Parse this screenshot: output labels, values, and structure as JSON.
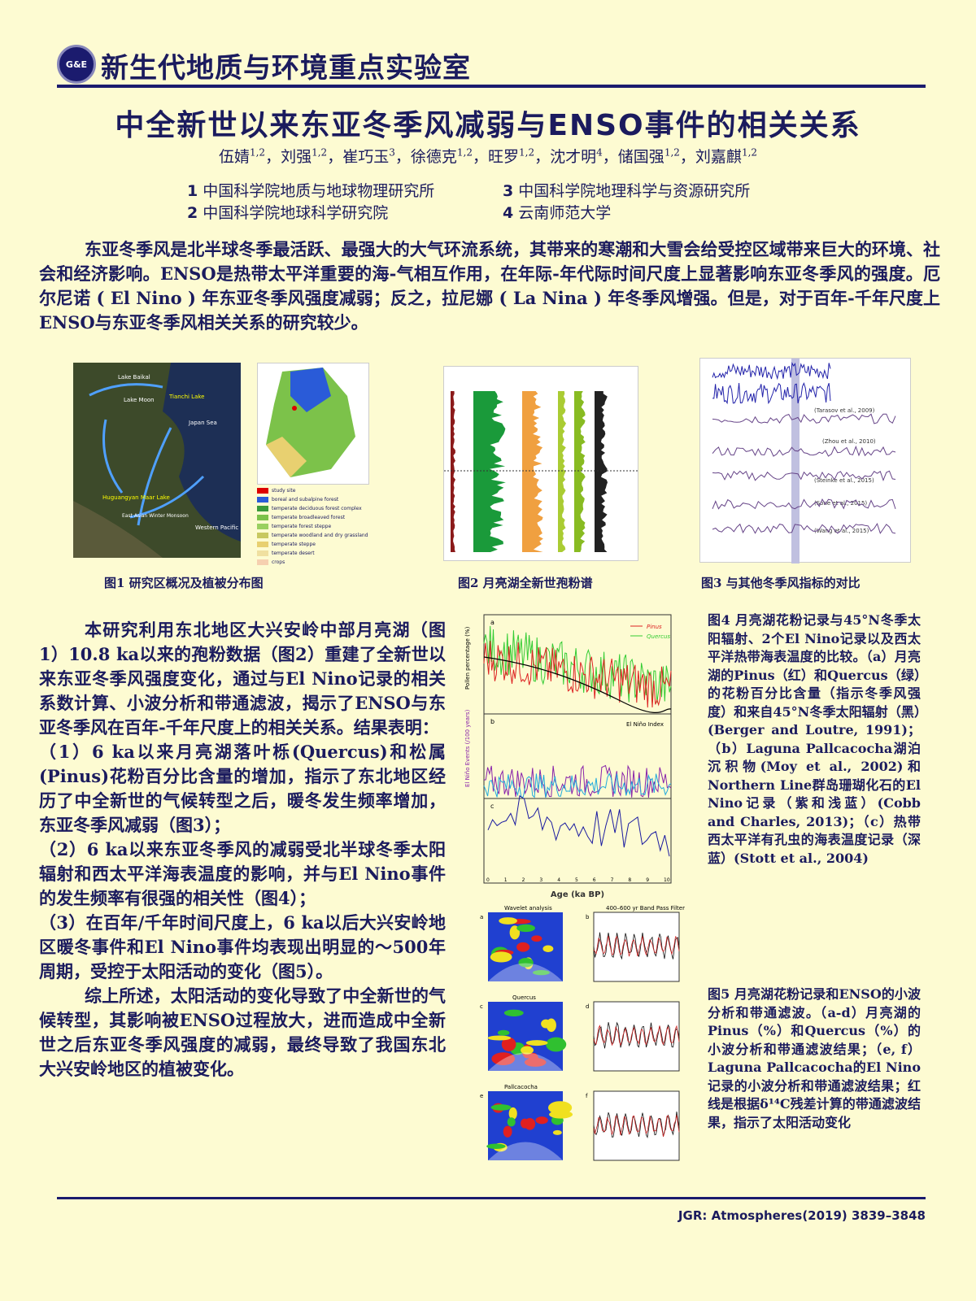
{
  "header": {
    "logo_text": "G&E",
    "lab_name": "新生代地质与环境重点实验室"
  },
  "title": "中全新世以来东亚冬季风减弱与ENSO事件的相关关系",
  "authors": [
    {
      "name": "伍婧",
      "sup": "1,2"
    },
    {
      "name": "刘强",
      "sup": "1,2"
    },
    {
      "name": "崔巧玉",
      "sup": "3"
    },
    {
      "name": "徐德克",
      "sup": "1,2"
    },
    {
      "name": "旺罗",
      "sup": "1,2"
    },
    {
      "name": "沈才明",
      "sup": "4"
    },
    {
      "name": "储国强",
      "sup": "1,2"
    },
    {
      "name": "刘嘉麒",
      "sup": "1,2"
    }
  ],
  "affiliations": [
    {
      "num": "1",
      "name": "中国科学院地质与地球物理研究所"
    },
    {
      "num": "2",
      "name": "中国科学院地球科学研究院"
    },
    {
      "num": "3",
      "name": "中国科学院地理科学与资源研究所"
    },
    {
      "num": "4",
      "name": "云南师范大学"
    }
  ],
  "intro": "东亚冬季风是北半球冬季最活跃、最强大的大气环流系统，其带来的寒潮和大雪会给受控区域带来巨大的环境、社会和经济影响。ENSO是热带太平洋重要的海-气相互作用，在年际-年代际时间尺度上显著影响东亚冬季风的强度。厄尔尼诺 ( El Nino ) 年东亚冬季风强度减弱；反之，拉尼娜 ( La Nina ) 年冬季风增强。但是，对于百年-千年尺度上ENSO与东亚冬季风相关关系的研究较少。",
  "figures": {
    "fig1": {
      "caption": "图1  研究区概况及植被分布图",
      "labels": [
        "Lake Baikal",
        "Lake Moon",
        "Tianchi Lake",
        "Japan Sea",
        "Western Pacific",
        "Huguangyan Maar Lake",
        "East Asian Winter Monsoon"
      ],
      "legend": [
        "study site",
        "boreal and subalpine forest",
        "temperate deciduous forest complex",
        "temperate broadleaved forest",
        "temperate forest steppe",
        "temperate woodland and dry grassland",
        "temperate steppe",
        "temperate desert",
        "crops"
      ]
    },
    "fig2": {
      "caption": "图2  月亮湖全新世孢粉谱"
    },
    "fig3": {
      "caption": "图3  与其他冬季风指标的对比",
      "labels": [
        "(Tarasov et al., 2009)",
        "(Zhou et al., 2010)",
        "(Steinke et al., 2015)",
        "(Sone et al., 2015)",
        "(Wang et al., 2015)"
      ]
    },
    "fig4": {
      "panel_labels": [
        "a",
        "b",
        "c"
      ],
      "legend": [
        "Pinus",
        "Quercus"
      ],
      "b_label": "El Niño Index",
      "ylabel_a": "Pollen percentage (%)",
      "ylabel_b": "El Niño Events (/100 years)",
      "xlabel": "Age (ka BP)",
      "x_ticks": [
        "0",
        "1",
        "2",
        "3",
        "4",
        "5",
        "6",
        "7",
        "8",
        "9",
        "10"
      ]
    },
    "fig5": {
      "titles": [
        "Wavelet analysis",
        "Quercus",
        "Pallcacocha",
        "400–600 yr Band Pass Filter"
      ],
      "panel_labels": [
        "a",
        "b",
        "c",
        "d",
        "e",
        "f"
      ]
    }
  },
  "body": {
    "p1": "本研究利用东北地区大兴安岭中部月亮湖（图1）10.8 ka以来的孢粉数据（图2）重建了全新世以来东亚冬季风强度变化，通过与El Nino记录的相关系数计算、小波分析和带通滤波，揭示了ENSO与东亚冬季风在百年-千年尺度上的相关关系。结果表明：",
    "p2": "（1）6 ka以来月亮湖落叶栎(Quercus)和松属(Pinus)花粉百分比含量的增加，指示了东北地区经历了中全新世的气候转型之后，暖冬发生频率增加，东亚冬季风减弱（图3）；",
    "p3": "（2）6 ka以来东亚冬季风的减弱受北半球冬季太阳辐射和西太平洋海表温度的影响，并与El Nino事件的发生频率有很强的相关性（图4）；",
    "p4": "（3）在百年/千年时间尺度上，6 ka以后大兴安岭地区暖冬事件和El Nino事件均表现出明显的～500年周期，受控于太阳活动的变化（图5）。",
    "p5": "综上所述，太阳活动的变化导致了中全新世的气候转型，其影响被ENSO过程放大，进而造成中全新世之后东亚冬季风强度的减弱，最终导致了我国东北大兴安岭地区的植被变化。"
  },
  "fig4_caption": "图4  月亮湖花粉记录与45°N冬季太阳辐射、2个El Nino记录以及西太平洋热带海表温度的比较。（a）月亮湖的Pinus（红）和Quercus（绿）的花粉百分比含量（指示冬季风强度）和来自45°N冬季太阳辐射（黑）(Berger and Loutre, 1991)；（b）Laguna Pallcacocha湖泊沉积物(Moy et al., 2002)和Northern Line群岛珊瑚化石的El Nino记录（紫和浅蓝）(Cobb and Charles, 2013)；（c）热带西太平洋有孔虫的海表温度记录（深蓝）(Stott et al., 2004)",
  "fig5_caption": "图5  月亮湖花粉记录和ENSO的小波分析和带通滤波。（a-d）月亮湖的Pinus（%）和Quercus（%）的小波分析和带通滤波结果；（e, f）Laguna Pallcacocha的El Nino记录的小波分析和带通滤波结果；红线是根据δ¹⁴C残差计算的带通滤波结果，指示了太阳活动变化",
  "reference": "JGR: Atmospheres(2019) 3839–3848",
  "colors": {
    "background": "#fdfbd2",
    "text": "#1b1b5e",
    "rule": "#1b1b6e",
    "pinus": "#dd2222",
    "quercus": "#33cc33",
    "elnino_purple": "#8822aa",
    "elnino_cyan": "#22aadd",
    "sst": "#1a1aa0"
  }
}
